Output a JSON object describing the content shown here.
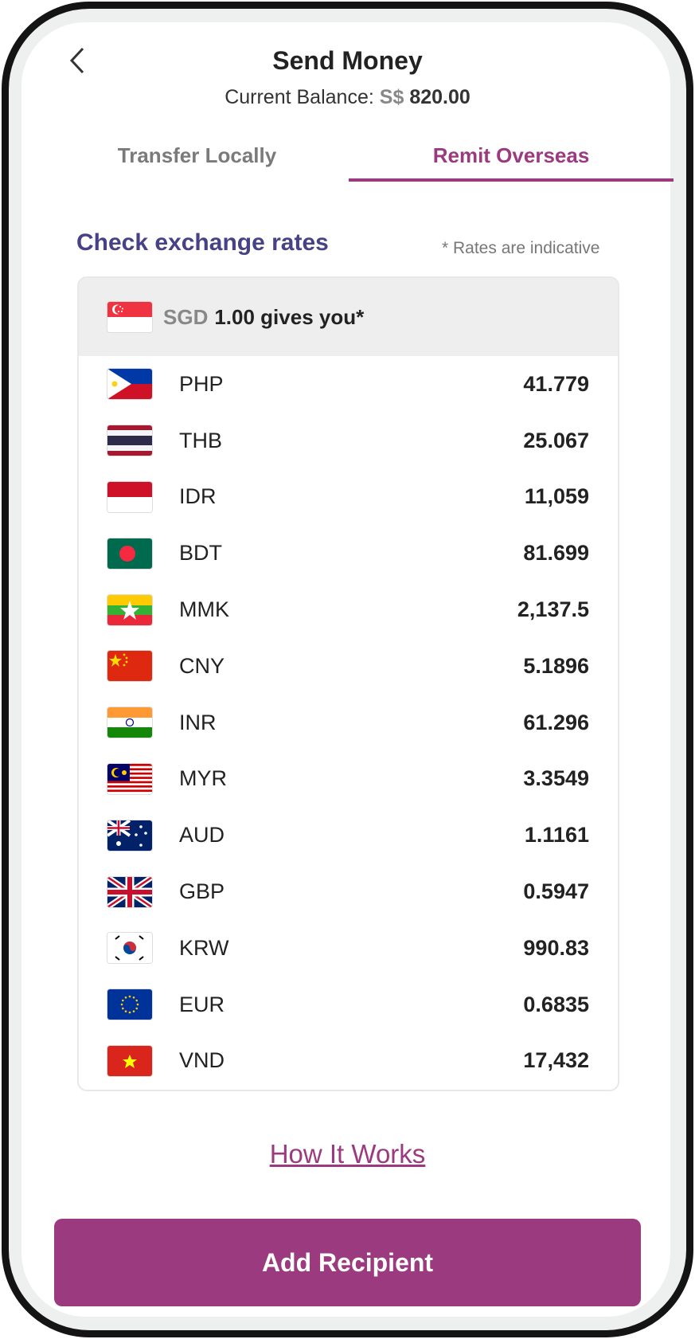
{
  "header": {
    "title": "Send Money",
    "balance_label": "Current Balance:",
    "balance_currency": "S$",
    "balance_amount": "820.00"
  },
  "tabs": [
    {
      "label": "Transfer Locally",
      "active": false
    },
    {
      "label": "Remit Overseas",
      "active": true
    }
  ],
  "rates": {
    "title": "Check exchange rates",
    "note": "* Rates are indicative",
    "base_currency": "SGD",
    "base_text": "1.00 gives you*",
    "items": [
      {
        "code": "PHP",
        "rate": "41.779",
        "flag": "philippines"
      },
      {
        "code": "THB",
        "rate": "25.067",
        "flag": "thailand"
      },
      {
        "code": "IDR",
        "rate": "11,059",
        "flag": "indonesia"
      },
      {
        "code": "BDT",
        "rate": "81.699",
        "flag": "bangladesh"
      },
      {
        "code": "MMK",
        "rate": "2,137.5",
        "flag": "myanmar"
      },
      {
        "code": "CNY",
        "rate": "5.1896",
        "flag": "china"
      },
      {
        "code": "INR",
        "rate": "61.296",
        "flag": "india"
      },
      {
        "code": "MYR",
        "rate": "3.3549",
        "flag": "malaysia"
      },
      {
        "code": "AUD",
        "rate": "1.1161",
        "flag": "australia"
      },
      {
        "code": "GBP",
        "rate": "0.5947",
        "flag": "uk"
      },
      {
        "code": "KRW",
        "rate": "990.83",
        "flag": "south-korea"
      },
      {
        "code": "EUR",
        "rate": "0.6835",
        "flag": "eu"
      },
      {
        "code": "VND",
        "rate": "17,432",
        "flag": "vietnam"
      }
    ]
  },
  "links": {
    "how_it_works": "How It Works"
  },
  "actions": {
    "add_recipient": "Add Recipient"
  },
  "colors": {
    "accent": "#9c3a7f",
    "heading": "#474285"
  }
}
